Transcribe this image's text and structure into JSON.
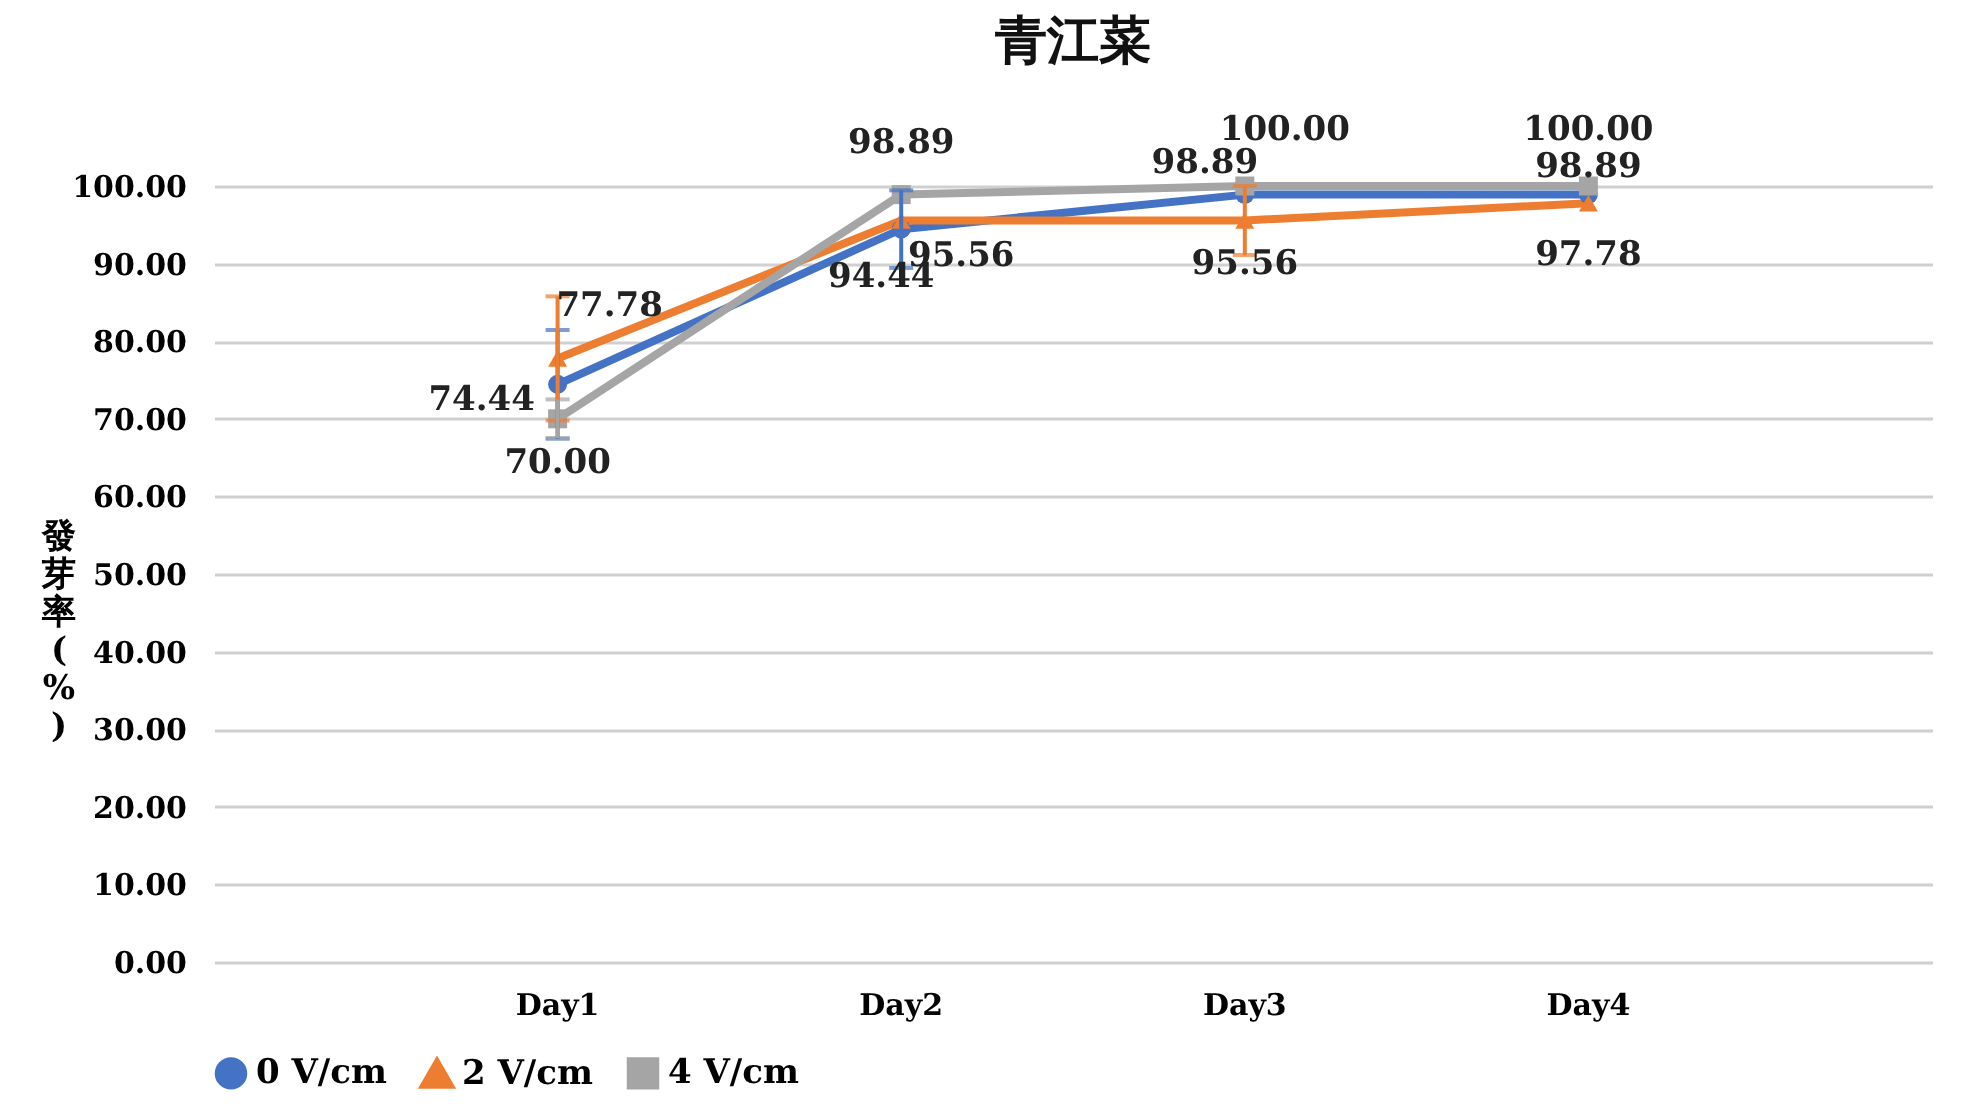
{
  "chart_data": {
    "type": "line",
    "title": "青江菜",
    "ylabel": "發芽率(%)",
    "categories": [
      "Day1",
      "Day2",
      "Day3",
      "Day4"
    ],
    "ylim": [
      0,
      100
    ],
    "yticks": [
      {
        "value": 0,
        "label": "0.00"
      },
      {
        "value": 10,
        "label": "10.00"
      },
      {
        "value": 20,
        "label": "20.00"
      },
      {
        "value": 30,
        "label": "30.00"
      },
      {
        "value": 40,
        "label": "40.00"
      },
      {
        "value": 50,
        "label": "50.00"
      },
      {
        "value": 60,
        "label": "60.00"
      },
      {
        "value": 70,
        "label": "70.00"
      },
      {
        "value": 80,
        "label": "80.00"
      },
      {
        "value": 90,
        "label": "90.00"
      },
      {
        "value": 100,
        "label": "100.00"
      }
    ],
    "grid": "y",
    "legend": "bottom",
    "line_style": "solid",
    "series": [
      {
        "name": "0 V/cm",
        "color": "#4472c4",
        "marker": "circle",
        "values": [
          74.44,
          94.44,
          98.89,
          98.89
        ],
        "errors": [
          7,
          5,
          null,
          null
        ],
        "value_labels": [
          "74.44",
          "94.44",
          "98.89",
          "98.89"
        ]
      },
      {
        "name": "2 V/cm",
        "color": "#ed7d31",
        "marker": "triangle",
        "values": [
          77.78,
          95.56,
          95.56,
          97.78
        ],
        "errors": [
          8,
          null,
          4.44,
          null
        ],
        "value_labels": [
          "77.78",
          "95.56",
          "95.56",
          "97.78"
        ]
      },
      {
        "name": "4 V/cm",
        "color": "#a5a5a5",
        "marker": "square",
        "values": [
          70.0,
          98.89,
          100.0,
          100.0
        ],
        "errors": [
          2.5,
          null,
          null,
          null
        ],
        "value_labels": [
          "70.00",
          "98.89",
          "100.00",
          "100.00"
        ]
      }
    ]
  }
}
